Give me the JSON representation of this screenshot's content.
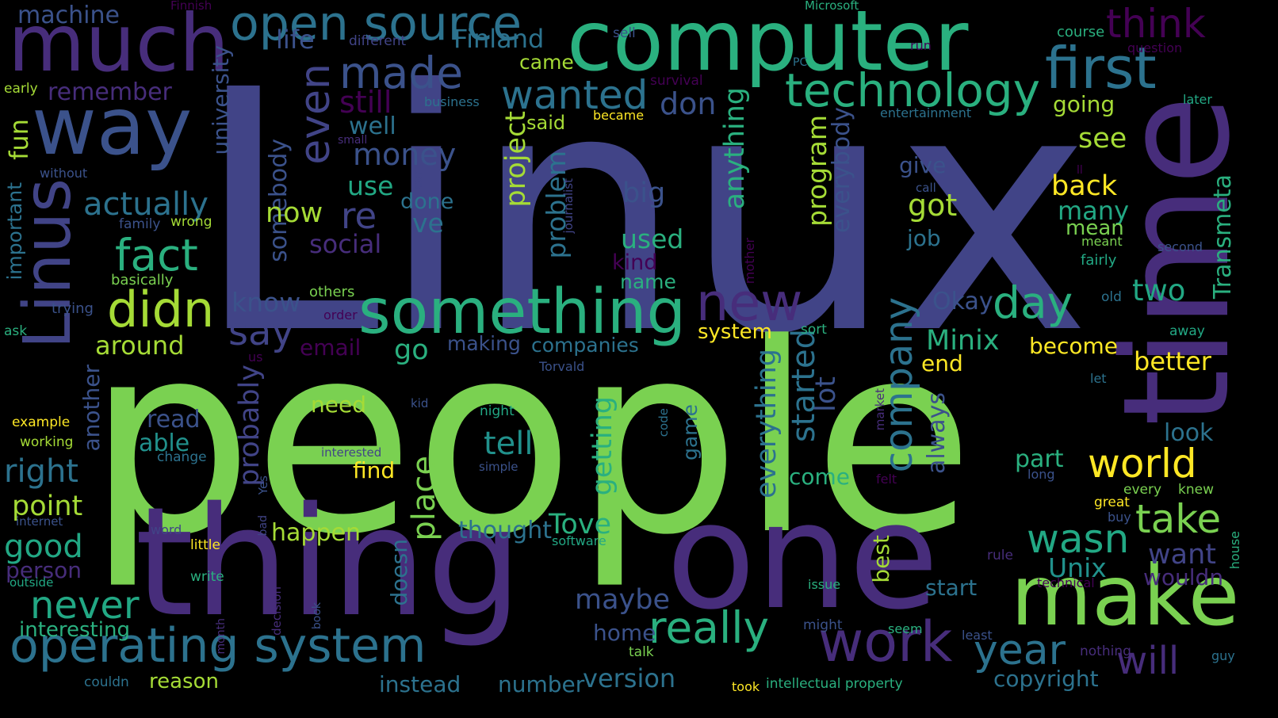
{
  "palette": {
    "background": "#000000",
    "bright_green": "#7ad151",
    "lime": "#a5db36",
    "yellow": "#fde725",
    "teal": "#22a884",
    "green_teal": "#2ab07f",
    "cyan_blue": "#21918c",
    "steel_blue": "#2c728e",
    "slate_blue": "#3b528b",
    "indigo": "#414487",
    "violet": "#472d7b",
    "deep_purple": "#440154"
  },
  "words": [
    {
      "text": "Linux",
      "color": "indigo",
      "vertical": false
    },
    {
      "text": "people",
      "color": "bright_green",
      "vertical": false
    },
    {
      "text": "computer",
      "color": "green_teal",
      "vertical": false
    },
    {
      "text": "one",
      "color": "violet",
      "vertical": false
    },
    {
      "text": "thing",
      "color": "violet",
      "vertical": false
    },
    {
      "text": "make",
      "color": "bright_green",
      "vertical": false
    },
    {
      "text": "time",
      "color": "violet",
      "vertical": true
    },
    {
      "text": "much",
      "color": "violet",
      "vertical": false
    },
    {
      "text": "way",
      "color": "slate_blue",
      "vertical": false
    },
    {
      "text": "Linus",
      "color": "indigo",
      "vertical": true
    },
    {
      "text": "something",
      "color": "green_teal",
      "vertical": false
    },
    {
      "text": "operating system",
      "color": "steel_blue",
      "vertical": false
    },
    {
      "text": "work",
      "color": "violet",
      "vertical": false
    },
    {
      "text": "first",
      "color": "steel_blue",
      "vertical": false
    },
    {
      "text": "open source",
      "color": "steel_blue",
      "vertical": false
    },
    {
      "text": "technology",
      "color": "green_teal",
      "vertical": false
    },
    {
      "text": "made",
      "color": "slate_blue",
      "vertical": false
    },
    {
      "text": "even",
      "color": "indigo",
      "vertical": true
    },
    {
      "text": "new",
      "color": "violet",
      "vertical": false
    },
    {
      "text": "really",
      "color": "green_teal",
      "vertical": false
    },
    {
      "text": "year",
      "color": "steel_blue",
      "vertical": false
    },
    {
      "text": "didn",
      "color": "lime",
      "vertical": false
    },
    {
      "text": "fact",
      "color": "green_teal",
      "vertical": false
    },
    {
      "text": "wanted",
      "color": "steel_blue",
      "vertical": false
    },
    {
      "text": "company",
      "color": "steel_blue",
      "vertical": true
    },
    {
      "text": "world",
      "color": "yellow",
      "vertical": false
    },
    {
      "text": "day",
      "color": "green_teal",
      "vertical": false
    },
    {
      "text": "take",
      "color": "bright_green",
      "vertical": false
    },
    {
      "text": "will",
      "color": "violet",
      "vertical": false
    },
    {
      "text": "wasn",
      "color": "teal",
      "vertical": false
    },
    {
      "text": "think",
      "color": "deep_purple",
      "vertical": false
    },
    {
      "text": "never",
      "color": "teal",
      "vertical": false
    },
    {
      "text": "say",
      "color": "indigo",
      "vertical": false
    },
    {
      "text": "re",
      "color": "indigo",
      "vertical": false
    },
    {
      "text": "actually",
      "color": "steel_blue",
      "vertical": false
    },
    {
      "text": "money",
      "color": "slate_blue",
      "vertical": false
    },
    {
      "text": "still",
      "color": "deep_purple",
      "vertical": false
    },
    {
      "text": "don",
      "color": "slate_blue",
      "vertical": false
    },
    {
      "text": "machine",
      "color": "slate_blue",
      "vertical": false
    },
    {
      "text": "Finland",
      "color": "steel_blue",
      "vertical": false
    },
    {
      "text": "life",
      "color": "slate_blue",
      "vertical": false
    },
    {
      "text": "remember",
      "color": "violet",
      "vertical": false
    },
    {
      "text": "Transmeta",
      "color": "green_teal",
      "vertical": true
    },
    {
      "text": "Minix",
      "color": "green_teal",
      "vertical": false
    },
    {
      "text": "back",
      "color": "yellow",
      "vertical": false
    },
    {
      "text": "got",
      "color": "lime",
      "vertical": false
    },
    {
      "text": "many",
      "color": "teal",
      "vertical": false
    },
    {
      "text": "mean",
      "color": "bright_green",
      "vertical": false
    },
    {
      "text": "see",
      "color": "lime",
      "vertical": false
    },
    {
      "text": "going",
      "color": "lime",
      "vertical": false
    },
    {
      "text": "two",
      "color": "teal",
      "vertical": false
    },
    {
      "text": "better",
      "color": "yellow",
      "vertical": false
    },
    {
      "text": "become",
      "color": "yellow",
      "vertical": false
    },
    {
      "text": "end",
      "color": "yellow",
      "vertical": false
    },
    {
      "text": "Okay",
      "color": "slate_blue",
      "vertical": false
    },
    {
      "text": "program",
      "color": "lime",
      "vertical": true
    },
    {
      "text": "everybody",
      "color": "slate_blue",
      "vertical": true
    },
    {
      "text": "anything",
      "color": "green_teal",
      "vertical": true
    },
    {
      "text": "big",
      "color": "slate_blue",
      "vertical": false
    },
    {
      "text": "used",
      "color": "green_teal",
      "vertical": false
    },
    {
      "text": "kind",
      "color": "deep_purple",
      "vertical": false
    },
    {
      "text": "name",
      "color": "green_teal",
      "vertical": false
    },
    {
      "text": "project",
      "color": "lime",
      "vertical": true
    },
    {
      "text": "problem",
      "color": "steel_blue",
      "vertical": true
    },
    {
      "text": "said",
      "color": "lime",
      "vertical": false
    },
    {
      "text": "came",
      "color": "lime",
      "vertical": false
    },
    {
      "text": "somebody",
      "color": "slate_blue",
      "vertical": true
    },
    {
      "text": "university",
      "color": "slate_blue",
      "vertical": true
    },
    {
      "text": "now",
      "color": "lime",
      "vertical": false
    },
    {
      "text": "use",
      "color": "teal",
      "vertical": false
    },
    {
      "text": "ve",
      "color": "steel_blue",
      "vertical": false
    },
    {
      "text": "done",
      "color": "steel_blue",
      "vertical": false
    },
    {
      "text": "well",
      "color": "steel_blue",
      "vertical": false
    },
    {
      "text": "social",
      "color": "violet",
      "vertical": false
    },
    {
      "text": "know",
      "color": "slate_blue",
      "vertical": false
    },
    {
      "text": "around",
      "color": "lime",
      "vertical": false
    },
    {
      "text": "go",
      "color": "green_teal",
      "vertical": false
    },
    {
      "text": "email",
      "color": "deep_purple",
      "vertical": false
    },
    {
      "text": "making",
      "color": "slate_blue",
      "vertical": false
    },
    {
      "text": "companies",
      "color": "steel_blue",
      "vertical": false
    },
    {
      "text": "system",
      "color": "yellow",
      "vertical": false
    },
    {
      "text": "everything",
      "color": "steel_blue",
      "vertical": true
    },
    {
      "text": "started",
      "color": "steel_blue",
      "vertical": true
    },
    {
      "text": "lot",
      "color": "slate_blue",
      "vertical": true
    },
    {
      "text": "always",
      "color": "slate_blue",
      "vertical": true
    },
    {
      "text": "give",
      "color": "slate_blue",
      "vertical": false
    },
    {
      "text": "job",
      "color": "steel_blue",
      "vertical": false
    },
    {
      "text": "part",
      "color": "green_teal",
      "vertical": false
    },
    {
      "text": "come",
      "color": "green_teal",
      "vertical": false
    },
    {
      "text": "look",
      "color": "steel_blue",
      "vertical": false
    },
    {
      "text": "want",
      "color": "indigo",
      "vertical": false
    },
    {
      "text": "wouldn",
      "color": "violet",
      "vertical": false
    },
    {
      "text": "Unix",
      "color": "cyan_blue",
      "vertical": false
    },
    {
      "text": "best",
      "color": "lime",
      "vertical": true
    },
    {
      "text": "start",
      "color": "steel_blue",
      "vertical": false
    },
    {
      "text": "Tove",
      "color": "green_teal",
      "vertical": false
    },
    {
      "text": "happen",
      "color": "lime",
      "vertical": false
    },
    {
      "text": "thought",
      "color": "steel_blue",
      "vertical": false
    },
    {
      "text": "maybe",
      "color": "slate_blue",
      "vertical": false
    },
    {
      "text": "home",
      "color": "slate_blue",
      "vertical": false
    },
    {
      "text": "version",
      "color": "steel_blue",
      "vertical": false
    },
    {
      "text": "number",
      "color": "steel_blue",
      "vertical": false
    },
    {
      "text": "instead",
      "color": "steel_blue",
      "vertical": false
    },
    {
      "text": "copyright",
      "color": "steel_blue",
      "vertical": false
    },
    {
      "text": "tell",
      "color": "cyan_blue",
      "vertical": false
    },
    {
      "text": "getting",
      "color": "green_teal",
      "vertical": true
    },
    {
      "text": "place",
      "color": "bright_green",
      "vertical": true
    },
    {
      "text": "doesn",
      "color": "steel_blue",
      "vertical": true
    },
    {
      "text": "find",
      "color": "yellow",
      "vertical": false
    },
    {
      "text": "need",
      "color": "lime",
      "vertical": false
    },
    {
      "text": "read",
      "color": "slate_blue",
      "vertical": false
    },
    {
      "text": "able",
      "color": "cyan_blue",
      "vertical": false
    },
    {
      "text": "probably",
      "color": "indigo",
      "vertical": true
    },
    {
      "text": "right",
      "color": "steel_blue",
      "vertical": false
    },
    {
      "text": "point",
      "color": "lime",
      "vertical": false
    },
    {
      "text": "good",
      "color": "teal",
      "vertical": false
    },
    {
      "text": "person",
      "color": "violet",
      "vertical": false
    },
    {
      "text": "interesting",
      "color": "green_teal",
      "vertical": false
    },
    {
      "text": "reason",
      "color": "lime",
      "vertical": false
    },
    {
      "text": "another",
      "color": "slate_blue",
      "vertical": true
    },
    {
      "text": "important",
      "color": "steel_blue",
      "vertical": true
    },
    {
      "text": "fun",
      "color": "lime",
      "vertical": true
    },
    {
      "text": "game",
      "color": "steel_blue",
      "vertical": true
    },
    {
      "text": "Finnish",
      "color": "deep_purple",
      "vertical": false
    },
    {
      "text": "Microsoft",
      "color": "green_teal",
      "vertical": false
    },
    {
      "text": "different",
      "color": "indigo",
      "vertical": false
    },
    {
      "text": "PC",
      "color": "steel_blue",
      "vertical": false
    },
    {
      "text": "sell",
      "color": "slate_blue",
      "vertical": false
    },
    {
      "text": "run",
      "color": "deep_purple",
      "vertical": false
    },
    {
      "text": "course",
      "color": "green_teal",
      "vertical": false
    },
    {
      "text": "question",
      "color": "deep_purple",
      "vertical": false
    },
    {
      "text": "survival",
      "color": "deep_purple",
      "vertical": false
    },
    {
      "text": "business",
      "color": "steel_blue",
      "vertical": false
    },
    {
      "text": "became",
      "color": "yellow",
      "vertical": false
    },
    {
      "text": "entertainment",
      "color": "steel_blue",
      "vertical": false
    },
    {
      "text": "later",
      "color": "teal",
      "vertical": false
    },
    {
      "text": "early",
      "color": "lime",
      "vertical": false
    },
    {
      "text": "small",
      "color": "violet",
      "vertical": false
    },
    {
      "text": "without",
      "color": "slate_blue",
      "vertical": false
    },
    {
      "text": "car",
      "color": "indigo",
      "vertical": true
    },
    {
      "text": "journalist",
      "color": "indigo",
      "vertical": true
    },
    {
      "text": "family",
      "color": "slate_blue",
      "vertical": false
    },
    {
      "text": "wrong",
      "color": "lime",
      "vertical": false
    },
    {
      "text": "basically",
      "color": "bright_green",
      "vertical": false
    },
    {
      "text": "trying",
      "color": "slate_blue",
      "vertical": false
    },
    {
      "text": "others",
      "color": "bright_green",
      "vertical": false
    },
    {
      "text": "order",
      "color": "deep_purple",
      "vertical": false
    },
    {
      "text": "ask",
      "color": "green_teal",
      "vertical": false
    },
    {
      "text": "us",
      "color": "deep_purple",
      "vertical": false
    },
    {
      "text": "Torvald",
      "color": "slate_blue",
      "vertical": false
    },
    {
      "text": "mother",
      "color": "deep_purple",
      "vertical": true
    },
    {
      "text": "sort",
      "color": "green_teal",
      "vertical": false
    },
    {
      "text": "old",
      "color": "steel_blue",
      "vertical": false
    },
    {
      "text": "away",
      "color": "teal",
      "vertical": false
    },
    {
      "text": "let",
      "color": "steel_blue",
      "vertical": false
    },
    {
      "text": "call",
      "color": "slate_blue",
      "vertical": false
    },
    {
      "text": "ll",
      "color": "deep_purple",
      "vertical": false
    },
    {
      "text": "meant",
      "color": "bright_green",
      "vertical": false
    },
    {
      "text": "fairly",
      "color": "teal",
      "vertical": false
    },
    {
      "text": "second",
      "color": "slate_blue",
      "vertical": false
    },
    {
      "text": "example",
      "color": "yellow",
      "vertical": false
    },
    {
      "text": "working",
      "color": "lime",
      "vertical": false
    },
    {
      "text": "change",
      "color": "steel_blue",
      "vertical": false
    },
    {
      "text": "kid",
      "color": "slate_blue",
      "vertical": false
    },
    {
      "text": "night",
      "color": "teal",
      "vertical": false
    },
    {
      "text": "code",
      "color": "steel_blue",
      "vertical": true
    },
    {
      "text": "market",
      "color": "violet",
      "vertical": true
    },
    {
      "text": "interested",
      "color": "indigo",
      "vertical": false
    },
    {
      "text": "simple",
      "color": "slate_blue",
      "vertical": false
    },
    {
      "text": "Yes",
      "color": "slate_blue",
      "vertical": true
    },
    {
      "text": "internet",
      "color": "slate_blue",
      "vertical": false
    },
    {
      "text": "word",
      "color": "indigo",
      "vertical": false
    },
    {
      "text": "bad",
      "color": "indigo",
      "vertical": true
    },
    {
      "text": "little",
      "color": "yellow",
      "vertical": false
    },
    {
      "text": "outside",
      "color": "teal",
      "vertical": false
    },
    {
      "text": "write",
      "color": "green_teal",
      "vertical": false
    },
    {
      "text": "month",
      "color": "violet",
      "vertical": true
    },
    {
      "text": "decision",
      "color": "violet",
      "vertical": true
    },
    {
      "text": "book",
      "color": "slate_blue",
      "vertical": true
    },
    {
      "text": "couldn",
      "color": "steel_blue",
      "vertical": false
    },
    {
      "text": "software",
      "color": "teal",
      "vertical": false
    },
    {
      "text": "talk",
      "color": "bright_green",
      "vertical": false
    },
    {
      "text": "took",
      "color": "yellow",
      "vertical": false
    },
    {
      "text": "intellectual property",
      "color": "green_teal",
      "vertical": false
    },
    {
      "text": "might",
      "color": "slate_blue",
      "vertical": false
    },
    {
      "text": "seem",
      "color": "green_teal",
      "vertical": false
    },
    {
      "text": "issue",
      "color": "green_teal",
      "vertical": false
    },
    {
      "text": "least",
      "color": "slate_blue",
      "vertical": false
    },
    {
      "text": "nothing",
      "color": "violet",
      "vertical": false
    },
    {
      "text": "rule",
      "color": "violet",
      "vertical": false
    },
    {
      "text": "technical",
      "color": "deep_purple",
      "vertical": false
    },
    {
      "text": "felt",
      "color": "deep_purple",
      "vertical": false
    },
    {
      "text": "long",
      "color": "slate_blue",
      "vertical": false
    },
    {
      "text": "great",
      "color": "yellow",
      "vertical": false
    },
    {
      "text": "buy",
      "color": "slate_blue",
      "vertical": false
    },
    {
      "text": "every",
      "color": "bright_green",
      "vertical": false
    },
    {
      "text": "knew",
      "color": "bright_green",
      "vertical": false
    },
    {
      "text": "house",
      "color": "green_teal",
      "vertical": true
    },
    {
      "text": "guy",
      "color": "steel_blue",
      "vertical": false
    }
  ]
}
